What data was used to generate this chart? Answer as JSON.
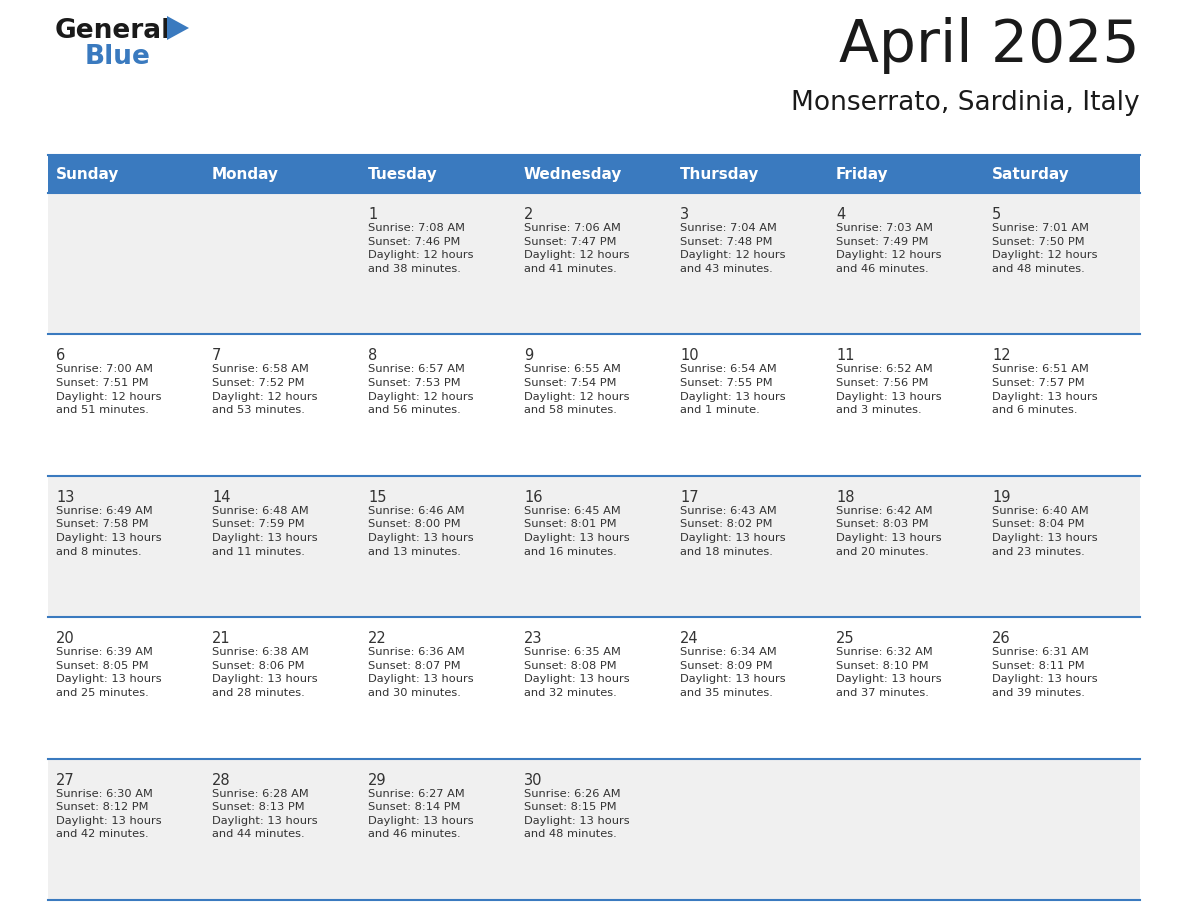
{
  "title": "April 2025",
  "subtitle": "Monserrato, Sardinia, Italy",
  "header_bg": "#3a7abf",
  "header_text": "#ffffff",
  "row_bg_odd": "#f0f0f0",
  "row_bg_even": "#ffffff",
  "separator_color": "#3a7abf",
  "text_color": "#333333",
  "days_of_week": [
    "Sunday",
    "Monday",
    "Tuesday",
    "Wednesday",
    "Thursday",
    "Friday",
    "Saturday"
  ],
  "weeks": [
    [
      {
        "day": "",
        "info": ""
      },
      {
        "day": "",
        "info": ""
      },
      {
        "day": "1",
        "info": "Sunrise: 7:08 AM\nSunset: 7:46 PM\nDaylight: 12 hours\nand 38 minutes."
      },
      {
        "day": "2",
        "info": "Sunrise: 7:06 AM\nSunset: 7:47 PM\nDaylight: 12 hours\nand 41 minutes."
      },
      {
        "day": "3",
        "info": "Sunrise: 7:04 AM\nSunset: 7:48 PM\nDaylight: 12 hours\nand 43 minutes."
      },
      {
        "day": "4",
        "info": "Sunrise: 7:03 AM\nSunset: 7:49 PM\nDaylight: 12 hours\nand 46 minutes."
      },
      {
        "day": "5",
        "info": "Sunrise: 7:01 AM\nSunset: 7:50 PM\nDaylight: 12 hours\nand 48 minutes."
      }
    ],
    [
      {
        "day": "6",
        "info": "Sunrise: 7:00 AM\nSunset: 7:51 PM\nDaylight: 12 hours\nand 51 minutes."
      },
      {
        "day": "7",
        "info": "Sunrise: 6:58 AM\nSunset: 7:52 PM\nDaylight: 12 hours\nand 53 minutes."
      },
      {
        "day": "8",
        "info": "Sunrise: 6:57 AM\nSunset: 7:53 PM\nDaylight: 12 hours\nand 56 minutes."
      },
      {
        "day": "9",
        "info": "Sunrise: 6:55 AM\nSunset: 7:54 PM\nDaylight: 12 hours\nand 58 minutes."
      },
      {
        "day": "10",
        "info": "Sunrise: 6:54 AM\nSunset: 7:55 PM\nDaylight: 13 hours\nand 1 minute."
      },
      {
        "day": "11",
        "info": "Sunrise: 6:52 AM\nSunset: 7:56 PM\nDaylight: 13 hours\nand 3 minutes."
      },
      {
        "day": "12",
        "info": "Sunrise: 6:51 AM\nSunset: 7:57 PM\nDaylight: 13 hours\nand 6 minutes."
      }
    ],
    [
      {
        "day": "13",
        "info": "Sunrise: 6:49 AM\nSunset: 7:58 PM\nDaylight: 13 hours\nand 8 minutes."
      },
      {
        "day": "14",
        "info": "Sunrise: 6:48 AM\nSunset: 7:59 PM\nDaylight: 13 hours\nand 11 minutes."
      },
      {
        "day": "15",
        "info": "Sunrise: 6:46 AM\nSunset: 8:00 PM\nDaylight: 13 hours\nand 13 minutes."
      },
      {
        "day": "16",
        "info": "Sunrise: 6:45 AM\nSunset: 8:01 PM\nDaylight: 13 hours\nand 16 minutes."
      },
      {
        "day": "17",
        "info": "Sunrise: 6:43 AM\nSunset: 8:02 PM\nDaylight: 13 hours\nand 18 minutes."
      },
      {
        "day": "18",
        "info": "Sunrise: 6:42 AM\nSunset: 8:03 PM\nDaylight: 13 hours\nand 20 minutes."
      },
      {
        "day": "19",
        "info": "Sunrise: 6:40 AM\nSunset: 8:04 PM\nDaylight: 13 hours\nand 23 minutes."
      }
    ],
    [
      {
        "day": "20",
        "info": "Sunrise: 6:39 AM\nSunset: 8:05 PM\nDaylight: 13 hours\nand 25 minutes."
      },
      {
        "day": "21",
        "info": "Sunrise: 6:38 AM\nSunset: 8:06 PM\nDaylight: 13 hours\nand 28 minutes."
      },
      {
        "day": "22",
        "info": "Sunrise: 6:36 AM\nSunset: 8:07 PM\nDaylight: 13 hours\nand 30 minutes."
      },
      {
        "day": "23",
        "info": "Sunrise: 6:35 AM\nSunset: 8:08 PM\nDaylight: 13 hours\nand 32 minutes."
      },
      {
        "day": "24",
        "info": "Sunrise: 6:34 AM\nSunset: 8:09 PM\nDaylight: 13 hours\nand 35 minutes."
      },
      {
        "day": "25",
        "info": "Sunrise: 6:32 AM\nSunset: 8:10 PM\nDaylight: 13 hours\nand 37 minutes."
      },
      {
        "day": "26",
        "info": "Sunrise: 6:31 AM\nSunset: 8:11 PM\nDaylight: 13 hours\nand 39 minutes."
      }
    ],
    [
      {
        "day": "27",
        "info": "Sunrise: 6:30 AM\nSunset: 8:12 PM\nDaylight: 13 hours\nand 42 minutes."
      },
      {
        "day": "28",
        "info": "Sunrise: 6:28 AM\nSunset: 8:13 PM\nDaylight: 13 hours\nand 44 minutes."
      },
      {
        "day": "29",
        "info": "Sunrise: 6:27 AM\nSunset: 8:14 PM\nDaylight: 13 hours\nand 46 minutes."
      },
      {
        "day": "30",
        "info": "Sunrise: 6:26 AM\nSunset: 8:15 PM\nDaylight: 13 hours\nand 48 minutes."
      },
      {
        "day": "",
        "info": ""
      },
      {
        "day": "",
        "info": ""
      },
      {
        "day": "",
        "info": ""
      }
    ]
  ],
  "logo_color_general": "#1a1a1a",
  "logo_color_blue": "#3a7abf",
  "fig_width": 11.88,
  "fig_height": 9.18,
  "dpi": 100
}
